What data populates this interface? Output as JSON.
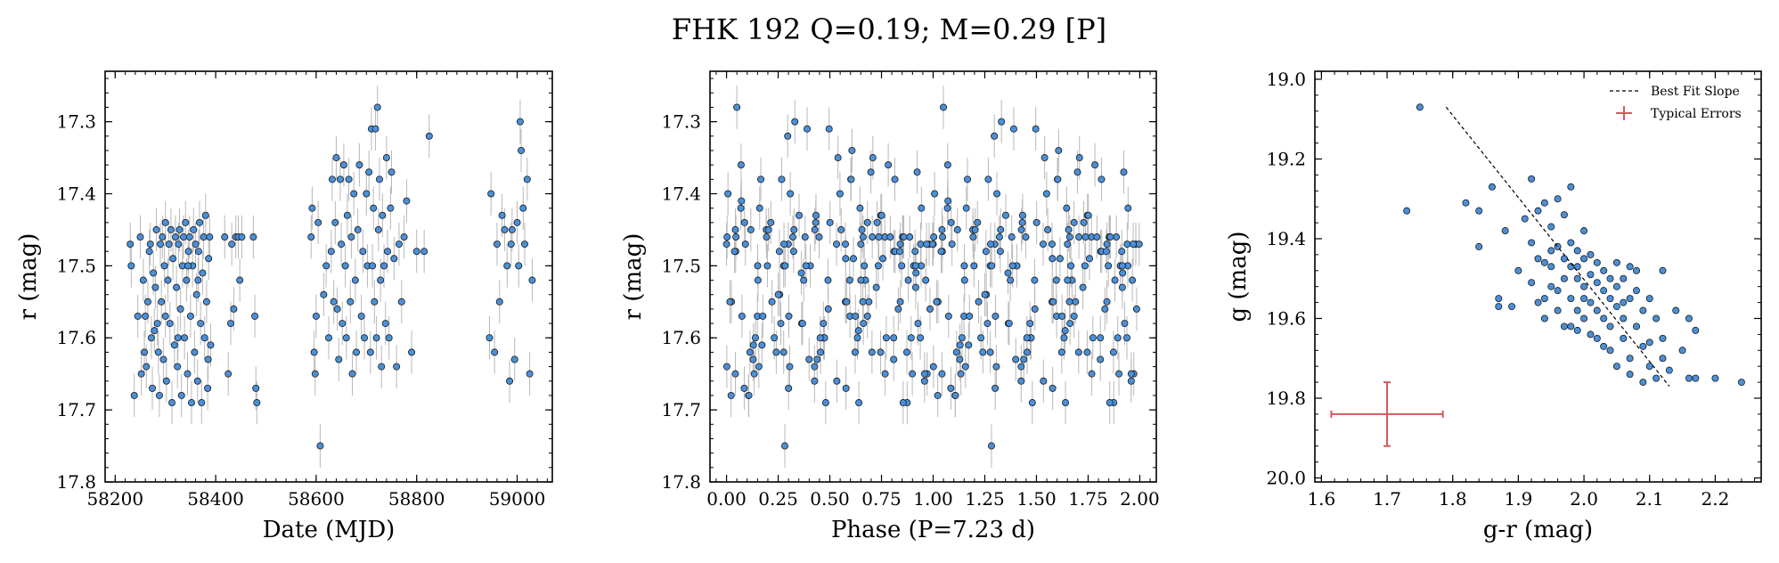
{
  "title": "FHK 192  Q=0.19; M=0.29 [P]",
  "colors": {
    "point": "#4a90d9",
    "edge": "#1a1a1a",
    "errbar": "#b8b8b8",
    "typical": "#d15b5b",
    "fit": "#000000"
  },
  "chart_data": [
    {
      "type": "scatter",
      "xlabel": "Date (MJD)",
      "ylabel": "r (mag)",
      "xlim": [
        58180,
        59070
      ],
      "ylim": [
        17.23,
        17.8
      ],
      "y_inverted": true,
      "xticks": [
        "58200",
        "58400",
        "58600",
        "58800",
        "59000"
      ],
      "yticks": [
        "17.3",
        "17.4",
        "17.5",
        "17.6",
        "17.7",
        "17.8"
      ],
      "yerr": 0.03,
      "points": [
        [
          58230,
          17.47
        ],
        [
          58232,
          17.5
        ],
        [
          58238,
          17.68
        ],
        [
          58250,
          17.46
        ],
        [
          58252,
          17.65
        ],
        [
          58256,
          17.52
        ],
        [
          58260,
          17.57
        ],
        [
          58262,
          17.64
        ],
        [
          58265,
          17.55
        ],
        [
          58268,
          17.48
        ],
        [
          58270,
          17.47
        ],
        [
          58272,
          17.6
        ],
        [
          58274,
          17.67
        ],
        [
          58276,
          17.51
        ],
        [
          58280,
          17.53
        ],
        [
          58282,
          17.45
        ],
        [
          58284,
          17.58
        ],
        [
          58286,
          17.62
        ],
        [
          58288,
          17.68
        ],
        [
          58290,
          17.47
        ],
        [
          58292,
          17.55
        ],
        [
          58294,
          17.46
        ],
        [
          58296,
          17.63
        ],
        [
          58298,
          17.5
        ],
        [
          58300,
          17.44
        ],
        [
          58302,
          17.66
        ],
        [
          58305,
          17.52
        ],
        [
          58307,
          17.47
        ],
        [
          58309,
          17.58
        ],
        [
          58311,
          17.45
        ],
        [
          58313,
          17.69
        ],
        [
          58315,
          17.49
        ],
        [
          58318,
          17.61
        ],
        [
          58320,
          17.46
        ],
        [
          58322,
          17.53
        ],
        [
          58324,
          17.64
        ],
        [
          58326,
          17.47
        ],
        [
          58328,
          17.45
        ],
        [
          58330,
          17.56
        ],
        [
          58332,
          17.68
        ],
        [
          58334,
          17.5
        ],
        [
          58336,
          17.46
        ],
        [
          58338,
          17.6
        ],
        [
          58340,
          17.44
        ],
        [
          58342,
          17.52
        ],
        [
          58344,
          17.65
        ],
        [
          58346,
          17.48
        ],
        [
          58348,
          17.46
        ],
        [
          58350,
          17.57
        ],
        [
          58352,
          17.69
        ],
        [
          58354,
          17.5
        ],
        [
          58356,
          17.45
        ],
        [
          58358,
          17.62
        ],
        [
          58360,
          17.47
        ],
        [
          58362,
          17.54
        ],
        [
          58364,
          17.66
        ],
        [
          58366,
          17.48
        ],
        [
          58368,
          17.44
        ],
        [
          58370,
          17.58
        ],
        [
          58372,
          17.69
        ],
        [
          58374,
          17.51
        ],
        [
          58376,
          17.46
        ],
        [
          58378,
          17.6
        ],
        [
          58380,
          17.43
        ],
        [
          58382,
          17.55
        ],
        [
          58384,
          17.67
        ],
        [
          58386,
          17.49
        ],
        [
          58388,
          17.46
        ],
        [
          58390,
          17.61
        ],
        [
          58245,
          17.57
        ],
        [
          58258,
          17.62
        ],
        [
          58278,
          17.59
        ],
        [
          58300,
          17.57
        ],
        [
          58325,
          17.6
        ],
        [
          58345,
          17.5
        ],
        [
          58365,
          17.52
        ],
        [
          58385,
          17.63
        ],
        [
          58418,
          17.46
        ],
        [
          58425,
          17.65
        ],
        [
          58430,
          17.58
        ],
        [
          58432,
          17.47
        ],
        [
          58436,
          17.56
        ],
        [
          58440,
          17.46
        ],
        [
          58445,
          17.46
        ],
        [
          58448,
          17.52
        ],
        [
          58452,
          17.46
        ],
        [
          58475,
          17.46
        ],
        [
          58478,
          17.57
        ],
        [
          58480,
          17.67
        ],
        [
          58482,
          17.69
        ],
        [
          58590,
          17.46
        ],
        [
          58592,
          17.42
        ],
        [
          58596,
          17.62
        ],
        [
          58598,
          17.65
        ],
        [
          58600,
          17.57
        ],
        [
          58604,
          17.44
        ],
        [
          58608,
          17.75
        ],
        [
          58615,
          17.54
        ],
        [
          58620,
          17.5
        ],
        [
          58625,
          17.6
        ],
        [
          58630,
          17.48
        ],
        [
          58632,
          17.38
        ],
        [
          58635,
          17.55
        ],
        [
          58638,
          17.44
        ],
        [
          58640,
          17.35
        ],
        [
          58642,
          17.56
        ],
        [
          58645,
          17.63
        ],
        [
          58648,
          17.38
        ],
        [
          58650,
          17.47
        ],
        [
          58652,
          17.58
        ],
        [
          58655,
          17.36
        ],
        [
          58658,
          17.5
        ],
        [
          58660,
          17.6
        ],
        [
          58662,
          17.43
        ],
        [
          58665,
          17.38
        ],
        [
          58668,
          17.55
        ],
        [
          58670,
          17.46
        ],
        [
          58672,
          17.65
        ],
        [
          58675,
          17.4
        ],
        [
          58678,
          17.52
        ],
        [
          58680,
          17.62
        ],
        [
          58683,
          17.45
        ],
        [
          58686,
          17.36
        ],
        [
          58690,
          17.57
        ],
        [
          58693,
          17.48
        ],
        [
          58696,
          17.6
        ],
        [
          58700,
          17.4
        ],
        [
          58702,
          17.5
        ],
        [
          58705,
          17.37
        ],
        [
          58708,
          17.62
        ],
        [
          58710,
          17.31
        ],
        [
          58712,
          17.5
        ],
        [
          58714,
          17.42
        ],
        [
          58716,
          17.55
        ],
        [
          58718,
          17.31
        ],
        [
          58720,
          17.6
        ],
        [
          58722,
          17.28
        ],
        [
          58724,
          17.45
        ],
        [
          58726,
          17.38
        ],
        [
          58728,
          17.52
        ],
        [
          58730,
          17.64
        ],
        [
          58732,
          17.43
        ],
        [
          58735,
          17.5
        ],
        [
          58738,
          17.58
        ],
        [
          58740,
          17.35
        ],
        [
          58742,
          17.48
        ],
        [
          58745,
          17.6
        ],
        [
          58748,
          17.42
        ],
        [
          58750,
          17.37
        ],
        [
          58755,
          17.49
        ],
        [
          58760,
          17.64
        ],
        [
          58765,
          17.47
        ],
        [
          58770,
          17.55
        ],
        [
          58775,
          17.46
        ],
        [
          58780,
          17.41
        ],
        [
          58790,
          17.62
        ],
        [
          58800,
          17.48
        ],
        [
          58815,
          17.48
        ],
        [
          58825,
          17.32
        ],
        [
          58945,
          17.6
        ],
        [
          58948,
          17.4
        ],
        [
          58955,
          17.62
        ],
        [
          58960,
          17.47
        ],
        [
          58965,
          17.55
        ],
        [
          58970,
          17.43
        ],
        [
          58975,
          17.45
        ],
        [
          58980,
          17.5
        ],
        [
          58985,
          17.66
        ],
        [
          58988,
          17.47
        ],
        [
          58990,
          17.45
        ],
        [
          58995,
          17.63
        ],
        [
          59000,
          17.44
        ],
        [
          59003,
          17.5
        ],
        [
          59006,
          17.3
        ],
        [
          59008,
          17.34
        ],
        [
          59012,
          17.42
        ],
        [
          59015,
          17.47
        ],
        [
          59020,
          17.38
        ],
        [
          59025,
          17.65
        ],
        [
          59030,
          17.52
        ]
      ]
    },
    {
      "type": "scatter",
      "xlabel": "Phase (P=7.23 d)",
      "ylabel": "r (mag)",
      "xlim": [
        -0.08,
        2.08
      ],
      "ylim": [
        17.23,
        17.8
      ],
      "y_inverted": true,
      "xticks": [
        "0.00",
        "0.25",
        "0.50",
        "0.75",
        "1.00",
        "1.25",
        "1.50",
        "1.75",
        "2.00"
      ],
      "yticks": [
        "17.3",
        "17.4",
        "17.5",
        "17.6",
        "17.7",
        "17.8"
      ],
      "yerr": 0.03,
      "period_days": 7.23
    },
    {
      "type": "scatter",
      "xlabel": "g-r (mag)",
      "ylabel": "g (mag)",
      "xlim": [
        1.59,
        2.27
      ],
      "ylim": [
        18.98,
        20.01
      ],
      "y_inverted": true,
      "xticks": [
        "1.6",
        "1.7",
        "1.8",
        "1.9",
        "2.0",
        "2.1",
        "2.2"
      ],
      "yticks": [
        "19.0",
        "19.2",
        "19.4",
        "19.6",
        "19.8",
        "20.0"
      ],
      "legend": {
        "position": "top-right",
        "items": [
          "Best Fit Slope",
          "Typical Errors"
        ]
      },
      "best_fit": [
        [
          1.79,
          19.07
        ],
        [
          2.13,
          19.77
        ]
      ],
      "typical_error": {
        "x": 1.7,
        "y": 19.84,
        "xerr": 0.085,
        "yerr": 0.08
      },
      "points": [
        [
          1.75,
          19.07
        ],
        [
          1.73,
          19.33
        ],
        [
          1.82,
          19.31
        ],
        [
          1.84,
          19.33
        ],
        [
          1.84,
          19.42
        ],
        [
          1.86,
          19.27
        ],
        [
          1.87,
          19.55
        ],
        [
          1.87,
          19.57
        ],
        [
          1.88,
          19.38
        ],
        [
          1.89,
          19.57
        ],
        [
          1.9,
          19.48
        ],
        [
          1.91,
          19.35
        ],
        [
          1.92,
          19.25
        ],
        [
          1.92,
          19.41
        ],
        [
          1.93,
          19.33
        ],
        [
          1.93,
          19.45
        ],
        [
          1.93,
          19.56
        ],
        [
          1.94,
          19.31
        ],
        [
          1.94,
          19.46
        ],
        [
          1.94,
          19.6
        ],
        [
          1.95,
          19.37
        ],
        [
          1.95,
          19.43
        ],
        [
          1.95,
          19.52
        ],
        [
          1.96,
          19.3
        ],
        [
          1.96,
          19.42
        ],
        [
          1.96,
          19.58
        ],
        [
          1.97,
          19.34
        ],
        [
          1.97,
          19.45
        ],
        [
          1.97,
          19.5
        ],
        [
          1.97,
          19.62
        ],
        [
          1.98,
          19.27
        ],
        [
          1.98,
          19.41
        ],
        [
          1.98,
          19.47
        ],
        [
          1.98,
          19.55
        ],
        [
          1.99,
          19.43
        ],
        [
          1.99,
          19.5
        ],
        [
          1.99,
          19.58
        ],
        [
          1.99,
          19.63
        ],
        [
          2.0,
          19.38
        ],
        [
          2.0,
          19.45
        ],
        [
          2.0,
          19.52
        ],
        [
          2.0,
          19.6
        ],
        [
          2.01,
          19.44
        ],
        [
          2.01,
          19.49
        ],
        [
          2.01,
          19.56
        ],
        [
          2.02,
          19.46
        ],
        [
          2.02,
          19.51
        ],
        [
          2.02,
          19.58
        ],
        [
          2.02,
          19.65
        ],
        [
          2.03,
          19.48
        ],
        [
          2.03,
          19.53
        ],
        [
          2.03,
          19.6
        ],
        [
          2.04,
          19.5
        ],
        [
          2.04,
          19.55
        ],
        [
          2.04,
          19.62
        ],
        [
          2.04,
          19.68
        ],
        [
          2.05,
          19.46
        ],
        [
          2.05,
          19.52
        ],
        [
          2.05,
          19.57
        ],
        [
          2.06,
          19.5
        ],
        [
          2.06,
          19.56
        ],
        [
          2.06,
          19.65
        ],
        [
          2.07,
          19.47
        ],
        [
          2.07,
          19.55
        ],
        [
          2.07,
          19.7
        ],
        [
          2.08,
          19.48
        ],
        [
          2.08,
          19.53
        ],
        [
          2.08,
          19.62
        ],
        [
          2.09,
          19.58
        ],
        [
          2.09,
          19.67
        ],
        [
          2.1,
          19.55
        ],
        [
          2.1,
          19.72
        ],
        [
          2.11,
          19.6
        ],
        [
          2.11,
          19.75
        ],
        [
          2.12,
          19.48
        ],
        [
          2.12,
          19.65
        ],
        [
          2.13,
          19.73
        ],
        [
          2.14,
          19.58
        ],
        [
          2.15,
          19.68
        ],
        [
          2.16,
          19.6
        ],
        [
          2.16,
          19.75
        ],
        [
          2.17,
          19.63
        ],
        [
          2.17,
          19.75
        ],
        [
          2.2,
          19.75
        ],
        [
          2.24,
          19.76
        ],
        [
          1.96,
          19.53
        ],
        [
          1.98,
          19.62
        ],
        [
          2.01,
          19.64
        ],
        [
          2.03,
          19.67
        ],
        [
          2.05,
          19.72
        ],
        [
          2.07,
          19.74
        ],
        [
          2.09,
          19.76
        ],
        [
          1.94,
          19.55
        ],
        [
          1.92,
          19.51
        ],
        [
          2.0,
          19.55
        ],
        [
          2.06,
          19.6
        ],
        [
          2.1,
          19.66
        ],
        [
          2.12,
          19.7
        ],
        [
          1.95,
          19.47
        ],
        [
          1.99,
          19.47
        ]
      ]
    }
  ]
}
